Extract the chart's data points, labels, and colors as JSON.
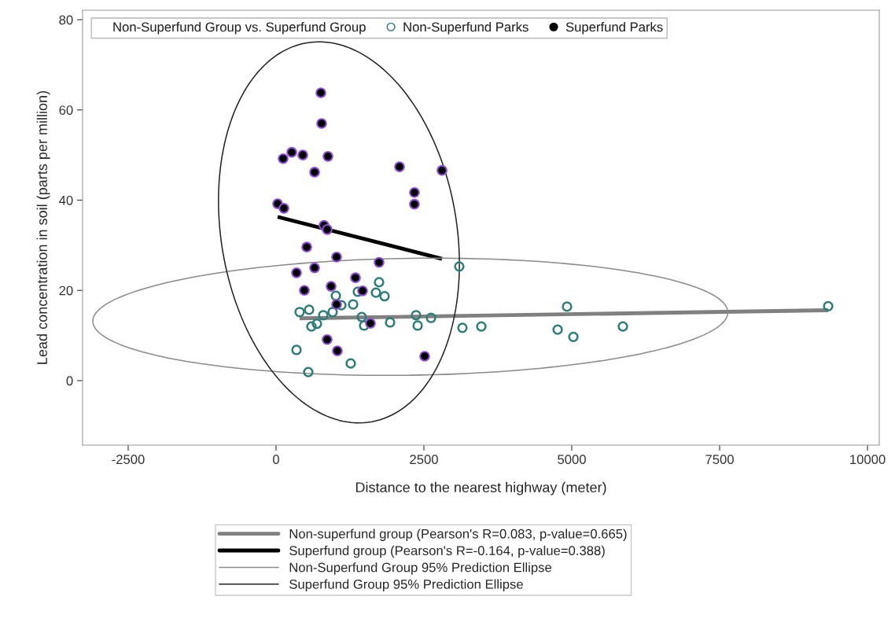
{
  "chart_data": {
    "type": "scatter",
    "xlabel": "Distance to the nearest highway (meter)",
    "ylabel": "Lead concentration in soil (parts per million)",
    "legend_title": "Non-Superfund Group vs. Superfund Group",
    "legend": "bottom",
    "marker": "circle",
    "xlim": [
      -3271,
      10199
    ],
    "xticks": [
      -2500,
      0,
      2500,
      5000,
      7500,
      10000
    ],
    "ylim": [
      -14.3,
      82.1
    ],
    "yticks": [
      0,
      20,
      40,
      60,
      80
    ],
    "grid": false,
    "series": [
      {
        "name": "Non-Superfund Parks",
        "color": "#2e7d78",
        "x": [
          3098,
          1742,
          1689,
          1835,
          1383,
          1011,
          1104,
          1303,
          399,
          559,
          798,
          957,
          1449,
          598,
          691,
          1489,
          1928,
          2367,
          2620,
          2394,
          346,
          1263,
          545,
          3151,
          3471,
          4920,
          4761,
          5027,
          5864,
          9335
        ],
        "values": [
          25.3,
          21.8,
          19.5,
          18.7,
          19.7,
          18.8,
          16.7,
          16.9,
          15.2,
          15.7,
          14.5,
          15.2,
          14.1,
          12.0,
          12.6,
          12.2,
          12.9,
          14.5,
          13.9,
          12.2,
          6.8,
          3.8,
          1.9,
          11.7,
          12.0,
          16.4,
          11.3,
          9.7,
          12.0,
          16.5
        ]
      },
      {
        "name": "Superfund Parks",
        "color": "#000000",
        "x": [
          758,
          771,
          120,
          266,
          452,
          878,
          652,
          2088,
          2806,
          2340,
          2340,
          27,
          133,
          811,
          865,
          519,
          1024,
          1742,
          652,
          346,
          1343,
          931,
          479,
          1463,
          1024,
          1596,
          864,
          1037,
          2513
        ],
        "values": [
          63.8,
          57.0,
          49.2,
          50.6,
          50.0,
          49.7,
          46.2,
          47.4,
          46.6,
          41.7,
          39.1,
          39.2,
          38.2,
          34.4,
          33.5,
          29.6,
          27.4,
          26.2,
          25.0,
          23.9,
          22.8,
          20.9,
          20.0,
          19.9,
          16.9,
          12.7,
          9.1,
          6.6,
          5.4
        ]
      },
      {
        "name": "Non-superfund group (Pearson's R=0.083, p-value=0.665)",
        "type": "line",
        "marker": "none",
        "color": "#808080",
        "x": [
          399,
          9335
        ],
        "values": [
          13.8,
          15.6
        ]
      },
      {
        "name": "Superfund group (Pearson's R=-0.164, p-value=0.388)",
        "type": "line",
        "marker": "none",
        "color": "#000000",
        "x": [
          27,
          2806
        ],
        "values": [
          36.3,
          27.0
        ]
      }
    ],
    "annotations": [
      "Non-Superfund Group 95% Prediction Ellipse",
      "Superfund Group 95% Prediction Ellipse"
    ]
  }
}
